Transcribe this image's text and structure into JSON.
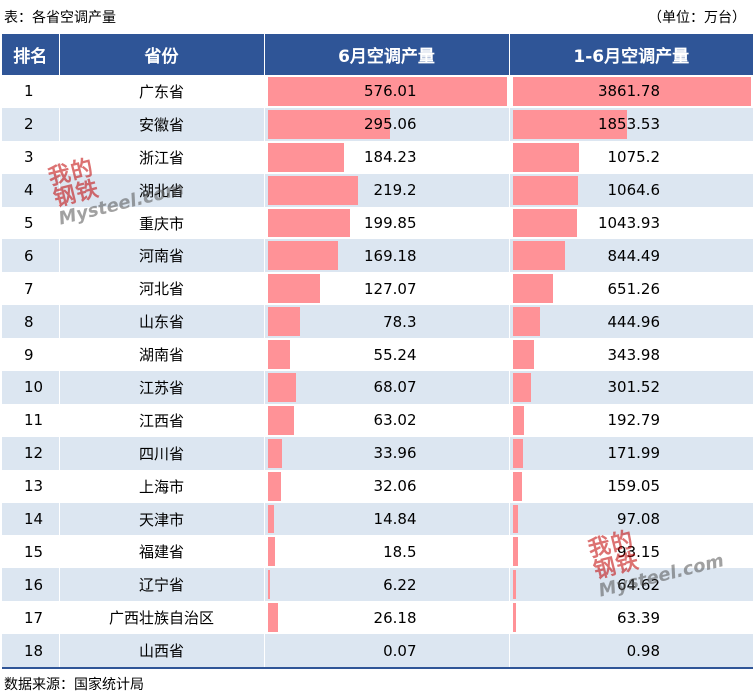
{
  "caption": "表：各省空调产量",
  "unit": "（单位：万台）",
  "source": "数据来源：国家统计局",
  "watermark": {
    "cn1": "我的",
    "cn2": "钢铁",
    "en": "Mysteel.com"
  },
  "headers": [
    "排名",
    "省份",
    "6月空调产量",
    "1-6月空调产量"
  ],
  "chart_data": {
    "type": "table",
    "columns": [
      "排名",
      "省份",
      "6月空调产量",
      "1-6月空调产量"
    ],
    "rows": [
      {
        "rank": "1",
        "province": "广东省",
        "june": 576.01,
        "ytd": 3861.78
      },
      {
        "rank": "2",
        "province": "安徽省",
        "june": 295.06,
        "ytd": 1853.53
      },
      {
        "rank": "3",
        "province": "浙江省",
        "june": 184.23,
        "ytd": 1075.2
      },
      {
        "rank": "4",
        "province": "湖北省",
        "june": 219.2,
        "ytd": 1064.6
      },
      {
        "rank": "5",
        "province": "重庆市",
        "june": 199.85,
        "ytd": 1043.93
      },
      {
        "rank": "6",
        "province": "河南省",
        "june": 169.18,
        "ytd": 844.49
      },
      {
        "rank": "7",
        "province": "河北省",
        "june": 127.07,
        "ytd": 651.26
      },
      {
        "rank": "8",
        "province": "山东省",
        "june": 78.3,
        "ytd": 444.96
      },
      {
        "rank": "9",
        "province": "湖南省",
        "june": 55.24,
        "ytd": 343.98
      },
      {
        "rank": "10",
        "province": "江苏省",
        "june": 68.07,
        "ytd": 301.52
      },
      {
        "rank": "11",
        "province": "江西省",
        "june": 63.02,
        "ytd": 192.79
      },
      {
        "rank": "12",
        "province": "四川省",
        "june": 33.96,
        "ytd": 171.99
      },
      {
        "rank": "13",
        "province": "上海市",
        "june": 32.06,
        "ytd": 159.05
      },
      {
        "rank": "14",
        "province": "天津市",
        "june": 14.84,
        "ytd": 97.08
      },
      {
        "rank": "15",
        "province": "福建省",
        "june": 18.5,
        "ytd": 93.15
      },
      {
        "rank": "16",
        "province": "辽宁省",
        "june": 6.22,
        "ytd": 64.62
      },
      {
        "rank": "17",
        "province": "广西壮族自治区",
        "june": 26.18,
        "ytd": 63.39
      },
      {
        "rank": "18",
        "province": "山西省",
        "june": 0.07,
        "ytd": 0.98
      }
    ],
    "bar_color": "#ff9297",
    "header_color": "#2f5597",
    "stripe_color": "#dce6f1"
  }
}
